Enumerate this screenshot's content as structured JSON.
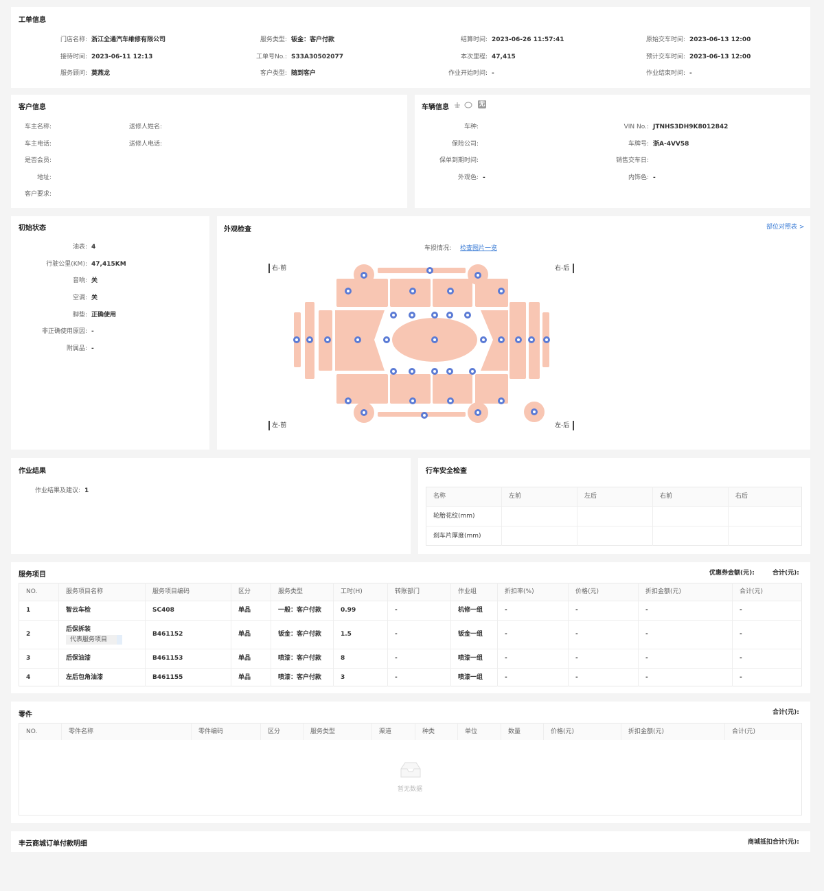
{
  "work_order": {
    "title": "工单信息",
    "fields": [
      {
        "label": "门店名称:",
        "value": "浙江全通汽车维修有限公司"
      },
      {
        "label": "服务类型:",
        "value": "钣金：客户付款"
      },
      {
        "label": "结算时间:",
        "value": "2023-06-26 11:57:41"
      },
      {
        "label": "原始交车时间:",
        "value": "2023-06-13 12:00"
      },
      {
        "label": "接待时间:",
        "value": "2023-06-11 12:13"
      },
      {
        "label": "工单号No.:",
        "value": "S33A30502077"
      },
      {
        "label": "本次里程:",
        "value": "47,415"
      },
      {
        "label": "预计交车时间:",
        "value": "2023-06-13 12:00"
      },
      {
        "label": "服务顾问:",
        "value": "莫燕龙"
      },
      {
        "label": "客户类型:",
        "value": "随到客户"
      },
      {
        "label": "作业开始时间:",
        "value": "-"
      },
      {
        "label": "作业结束时间:",
        "value": "-"
      }
    ]
  },
  "customer": {
    "title": "客户信息",
    "fields": [
      {
        "label": "车主名称:"
      },
      {
        "label": "送修人姓名:"
      },
      {
        "label": "车主电话:"
      },
      {
        "label": "送修人电话:"
      },
      {
        "label": "是否会员:"
      },
      {
        "label": "地址:"
      },
      {
        "label": "客户要求:"
      }
    ]
  },
  "vehicle": {
    "title": "车辆信息",
    "badge": "无",
    "fields": [
      {
        "label": "车种:"
      },
      {
        "label": "VIN No.:",
        "value": "JTNHS3DH9K8012842"
      },
      {
        "label": "保险公司:"
      },
      {
        "label": "车牌号:",
        "value": "浙A-4VV58"
      },
      {
        "label": "保单到期时间:"
      },
      {
        "label": "销售交车日:"
      },
      {
        "label": "外观色:",
        "value": "-"
      },
      {
        "label": "内饰色:",
        "value": "-"
      }
    ]
  },
  "initial_state": {
    "title": "初始状态",
    "fields": [
      {
        "label": "油表:",
        "value": "4"
      },
      {
        "label": "行驶公里(KM):",
        "value": "47,415KM"
      },
      {
        "label": "音响:",
        "value": "关"
      },
      {
        "label": "空调:",
        "value": "关"
      },
      {
        "label": "脚垫:",
        "value": "正确使用"
      },
      {
        "label": "非正确使用原因:",
        "value": "-"
      },
      {
        "label": "附属品:",
        "value": "-"
      }
    ]
  },
  "exterior": {
    "title": "外观检查",
    "link": "部位对照表 >",
    "damage_label": "车损情况:",
    "damage_link": "检查图片一览",
    "corners": [
      "右-前",
      "右-后",
      "左-前",
      "左-后"
    ]
  },
  "work_result": {
    "title": "作业结果",
    "fields": [
      {
        "label": "作业结果及建议:",
        "value": "1"
      }
    ]
  },
  "safety": {
    "title": "行车安全检查",
    "table": {
      "columns": [
        "名称",
        "左前",
        "左后",
        "右前",
        "右后"
      ],
      "rows": [
        [
          "轮胎花纹(mm)"
        ],
        [
          "刹车片厚度(mm)"
        ]
      ]
    }
  },
  "services": {
    "title": "服务项目",
    "summary": [
      "优惠券金额(元):",
      "合计(元):"
    ],
    "table": {
      "columns": [
        "NO.",
        "服务项目名称",
        "服务项目编码",
        "区分",
        "服务类型",
        "工时(H)",
        "转账部门",
        "作业组",
        "折扣率(%)",
        "价格(元)",
        "折扣金额(元)",
        "合计(元)"
      ],
      "rows": [
        [
          "1",
          "智云车检",
          "SC408",
          "单品",
          "一般：客户付款",
          "0.99",
          "-",
          "机修一组",
          "-",
          "-",
          "-",
          "-"
        ],
        [
          "2",
          {
            "text": "后保拆装",
            "tag": "代表服务项目"
          },
          "B461152",
          "单品",
          "钣金：客户付款",
          "1.5",
          "-",
          "钣金一组",
          "-",
          "-",
          "-",
          "-"
        ],
        [
          "3",
          "后保油漆",
          "B461153",
          "单品",
          "喷漆：客户付款",
          "8",
          "-",
          "喷漆一组",
          "-",
          "-",
          "-",
          "-"
        ],
        [
          "4",
          "左后包角油漆",
          "B461155",
          "单品",
          "喷漆：客户付款",
          "3",
          "-",
          "喷漆一组",
          "-",
          "-",
          "-",
          "-"
        ]
      ]
    }
  },
  "parts": {
    "title": "零件",
    "summary": [
      "合计(元):"
    ],
    "table": {
      "columns": [
        "NO.",
        "零件名称",
        "零件编码",
        "区分",
        "服务类型",
        "渠道",
        "种类",
        "单位",
        "数量",
        "价格(元)",
        "折扣金额(元)",
        "合计(元)"
      ],
      "rows": []
    },
    "empty": "暂无数据"
  },
  "mall": {
    "title": "丰云商城订单付款明细",
    "summary": [
      "商城抵扣合计(元):"
    ]
  }
}
